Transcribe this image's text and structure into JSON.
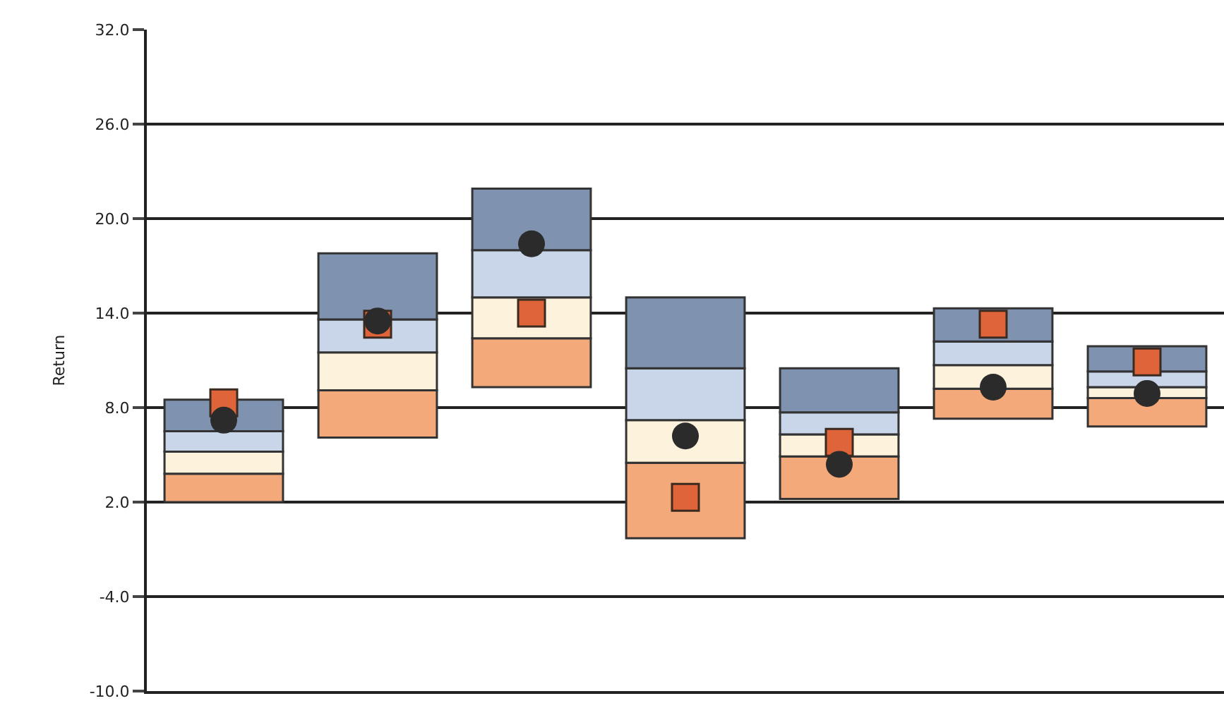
{
  "chart_data": {
    "type": "bar",
    "ylabel": "Return",
    "categories": [
      null,
      null,
      null,
      null,
      null,
      null,
      null
    ],
    "series": [
      {
        "color": "#f4a97a",
        "base": [
          2.0,
          6.1,
          9.3,
          -0.3,
          2.2,
          7.3,
          6.8
        ],
        "values": [
          1.8,
          3.0,
          3.1,
          4.8,
          2.7,
          1.9,
          1.8
        ]
      },
      {
        "color": "#fdf3dc",
        "base": [
          3.8,
          9.1,
          12.4,
          4.5,
          4.9,
          9.2,
          8.6
        ],
        "values": [
          1.4,
          2.4,
          2.6,
          2.7,
          1.4,
          1.5,
          0.7
        ]
      },
      {
        "color": "#c9d5e8",
        "base": [
          5.2,
          11.5,
          15.0,
          7.2,
          6.3,
          10.7,
          9.3
        ],
        "values": [
          1.3,
          2.1,
          3.0,
          3.3,
          1.4,
          1.5,
          1.0
        ]
      },
      {
        "color": "#7f93b0",
        "base": [
          6.5,
          13.6,
          18.0,
          10.5,
          7.7,
          12.2,
          10.3
        ],
        "values": [
          2.0,
          4.2,
          3.9,
          4.5,
          2.8,
          2.1,
          1.6
        ]
      },
      {
        "type": "scatter",
        "marker": "square",
        "color": "#e0643a",
        "values": [
          8.3,
          13.3,
          14.0,
          2.3,
          5.8,
          13.3,
          10.9
        ]
      },
      {
        "type": "scatter",
        "marker": "circle",
        "color": "#2b2b2b",
        "values": [
          7.2,
          13.5,
          18.4,
          6.2,
          4.4,
          9.3,
          8.9
        ]
      }
    ],
    "ylim": [
      -10,
      32
    ],
    "yticks": [
      {
        "value": -10,
        "label": "-10.0"
      },
      {
        "value": -4,
        "label": "-4.0"
      },
      {
        "value": 2,
        "label": "2.0"
      },
      {
        "value": 8,
        "label": "8.0"
      },
      {
        "value": 14,
        "label": "14.0"
      },
      {
        "value": 20,
        "label": "20.0"
      },
      {
        "value": 26,
        "label": "26.0"
      },
      {
        "value": 32,
        "label": "32.0"
      }
    ],
    "grid": "y",
    "tick_labels": "y"
  }
}
